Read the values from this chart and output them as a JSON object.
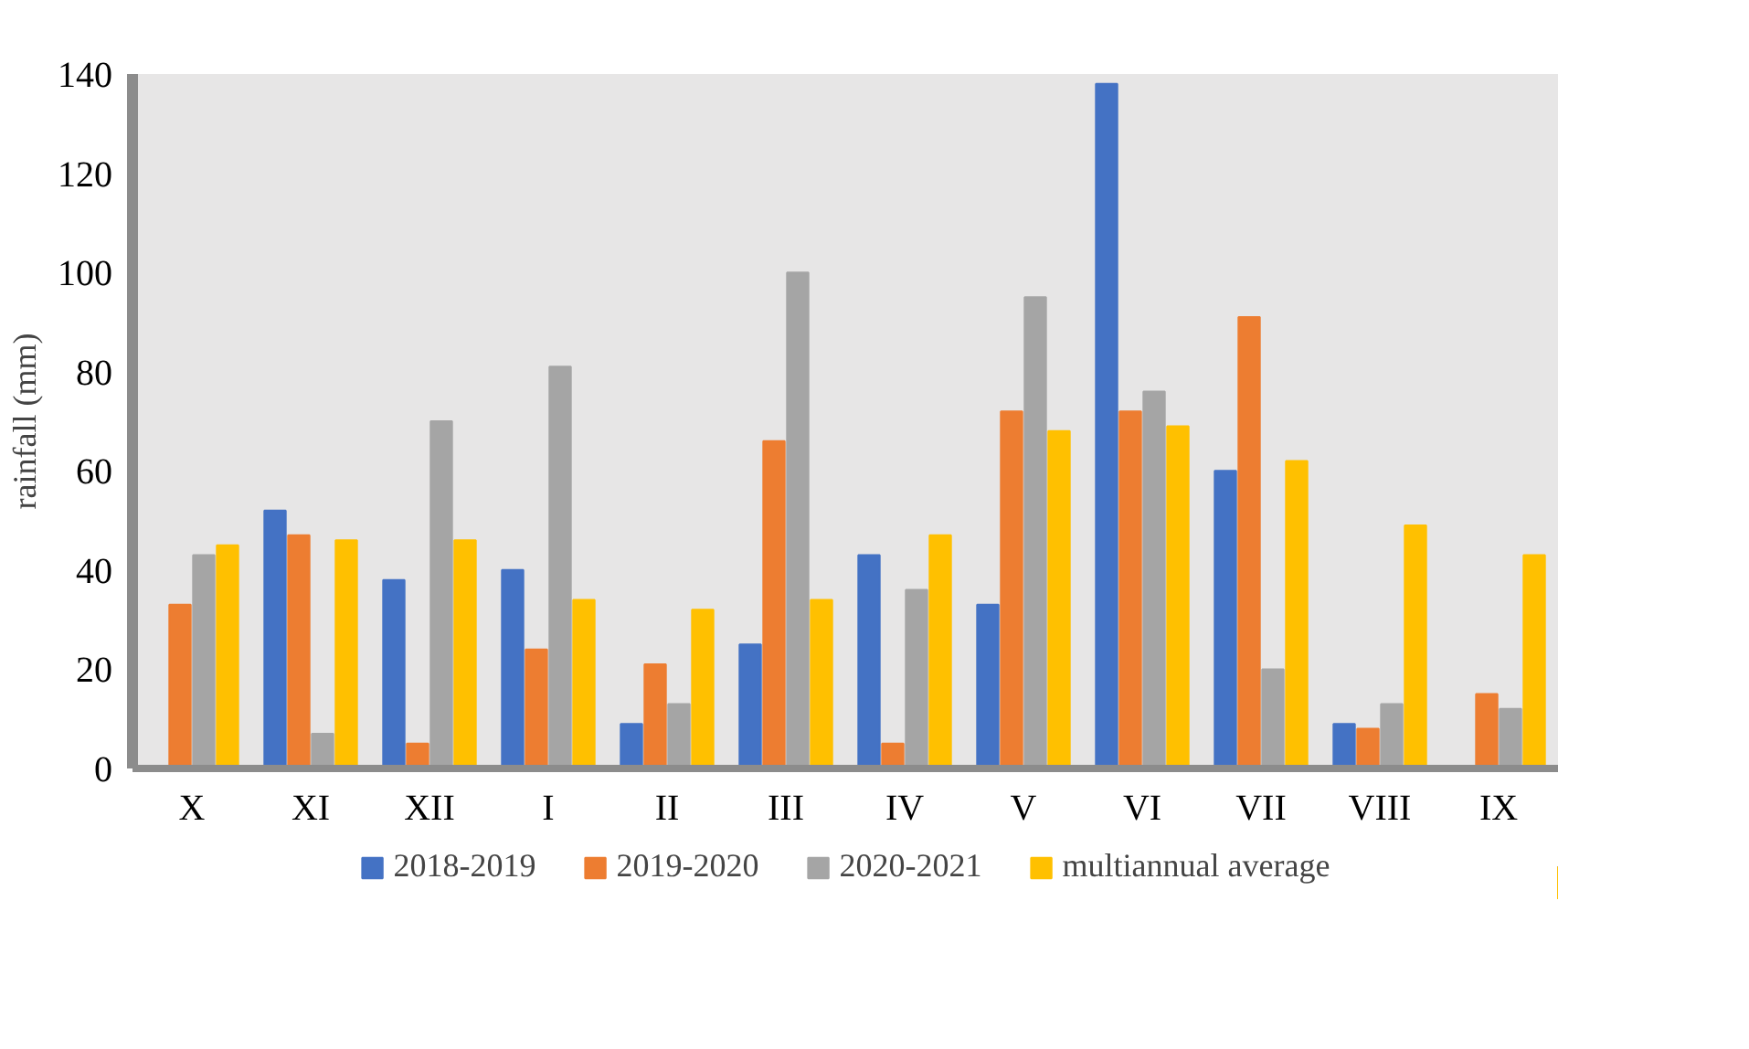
{
  "chart_data": {
    "type": "bar",
    "ylabel": "rainfall (mm)",
    "categories": [
      "X",
      "XI",
      "XII",
      "I",
      "II",
      "III",
      "IV",
      "V",
      "VI",
      "VII",
      "VIII",
      "IX"
    ],
    "ylim": [
      0,
      140
    ],
    "yticks": [
      0,
      20,
      40,
      60,
      80,
      100,
      120,
      140
    ],
    "grid": false,
    "legend": "bottom",
    "series": [
      {
        "name": "2018-2019",
        "color": "#4472c4",
        "values": [
          0,
          52,
          38,
          40,
          9,
          25,
          43,
          33,
          138,
          60,
          9,
          0
        ]
      },
      {
        "name": "2019-2020",
        "color": "#ed7d31",
        "values": [
          33,
          47,
          5,
          24,
          21,
          66,
          5,
          72,
          72,
          91,
          8,
          15
        ]
      },
      {
        "name": "2020-2021",
        "color": "#a5a5a5",
        "values": [
          43,
          7,
          70,
          81,
          13,
          100,
          36,
          95,
          76,
          20,
          13,
          12
        ]
      },
      {
        "name": "multiannual average",
        "color": "#ffc000",
        "values": [
          45,
          46,
          46,
          34,
          32,
          34,
          47,
          68,
          69,
          62,
          49,
          43
        ]
      }
    ]
  }
}
